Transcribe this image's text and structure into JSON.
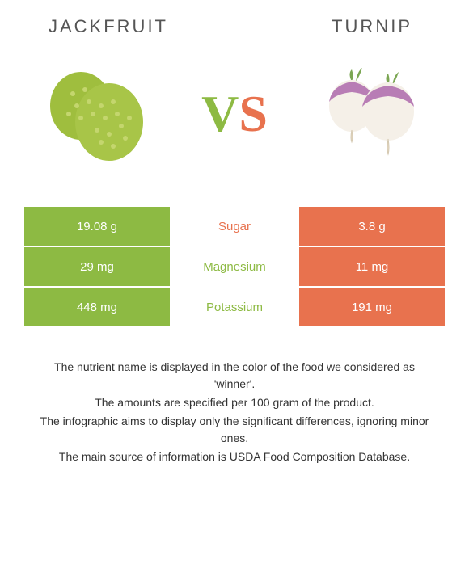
{
  "header": {
    "left_title": "JACKFRUIT",
    "right_title": "TURNIP"
  },
  "vs": {
    "v_color": "#8dba43",
    "s_color": "#e8724e"
  },
  "comparison": {
    "type": "table",
    "left_color": "#8dba43",
    "right_color": "#e8724e",
    "rows": [
      {
        "left_value": "19.08 g",
        "nutrient": "Sugar",
        "nutrient_color": "#e8724e",
        "right_value": "3.8 g"
      },
      {
        "left_value": "29 mg",
        "nutrient": "Magnesium",
        "nutrient_color": "#8dba43",
        "right_value": "11 mg"
      },
      {
        "left_value": "448 mg",
        "nutrient": "Potassium",
        "nutrient_color": "#8dba43",
        "right_value": "191 mg"
      }
    ]
  },
  "footer": {
    "line1": "The nutrient name is displayed in the color of the food we considered as 'winner'.",
    "line2": "The amounts are specified per 100 gram of the product.",
    "line3": "The infographic aims to display only the significant differences, ignoring minor ones.",
    "line4": "The main source of information is USDA Food Composition Database."
  },
  "images": {
    "jackfruit": {
      "primary_color": "#9fbe3e",
      "texture_color": "#c4d66e"
    },
    "turnip": {
      "top_color": "#b87db5",
      "bottom_color": "#f5f0e8",
      "leaf_color": "#7ba653"
    }
  }
}
